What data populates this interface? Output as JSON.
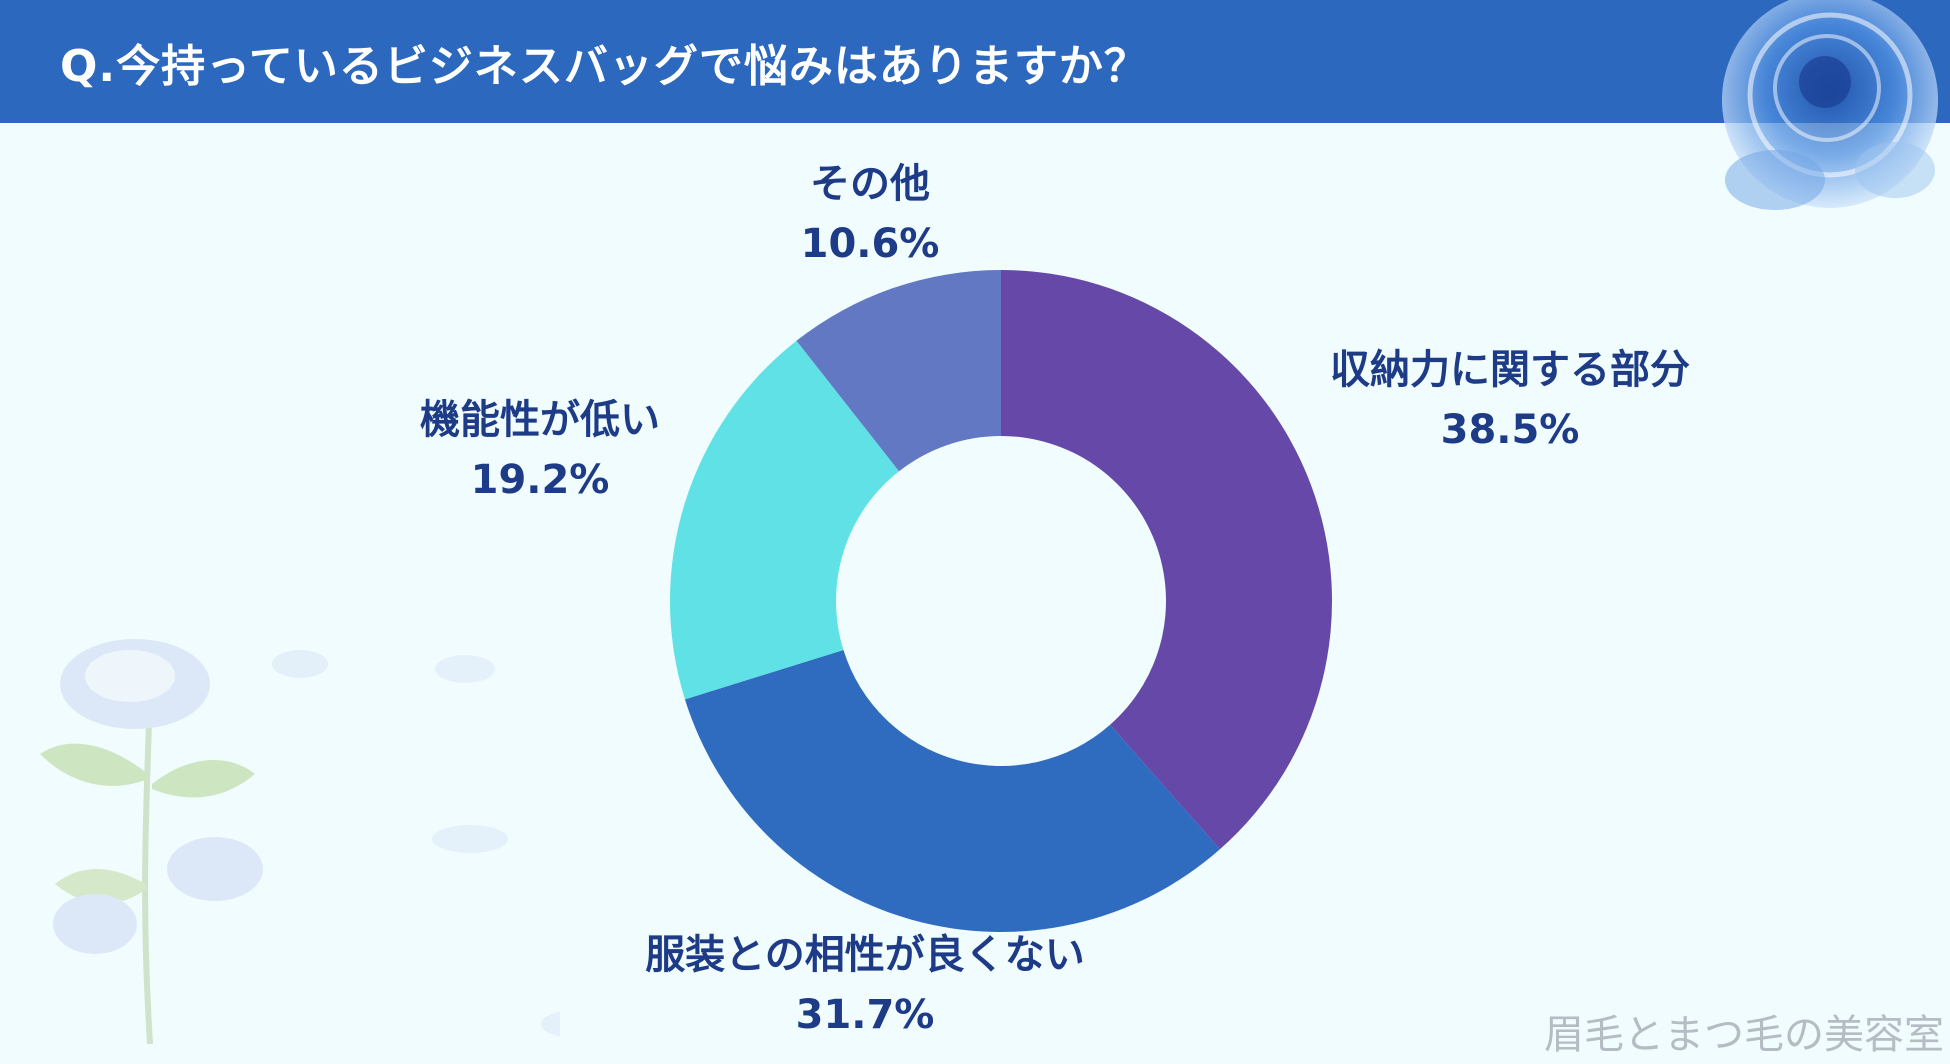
{
  "header": {
    "title": "Q.今持っているビジネスバッグで悩みはありますか？",
    "background_color": "#2d68bf"
  },
  "chart_data": {
    "type": "pie",
    "donut": true,
    "title": "Q.今持っているビジネスバッグで悩みはありますか？",
    "slices": [
      {
        "label": "収納力に関する部分",
        "value": 38.5,
        "display": "38.5%",
        "color": "#6548a8"
      },
      {
        "label": "服装との相性が良くない",
        "value": 31.7,
        "display": "31.7%",
        "color": "#2f6bbf"
      },
      {
        "label": "機能性が低い",
        "value": 19.2,
        "display": "19.2%",
        "color": "#5fe1e6"
      },
      {
        "label": "その他",
        "value": 10.6,
        "display": "10.6%",
        "color": "#6278c2"
      }
    ],
    "start": "12 o'clock",
    "direction": "clockwise",
    "legend": "none"
  },
  "watermark": {
    "text": "眉毛とまつ毛の美容室"
  },
  "decor": {
    "top_right": "blue-rose-icon",
    "bottom_left": "blue-rose-branch-icon"
  }
}
